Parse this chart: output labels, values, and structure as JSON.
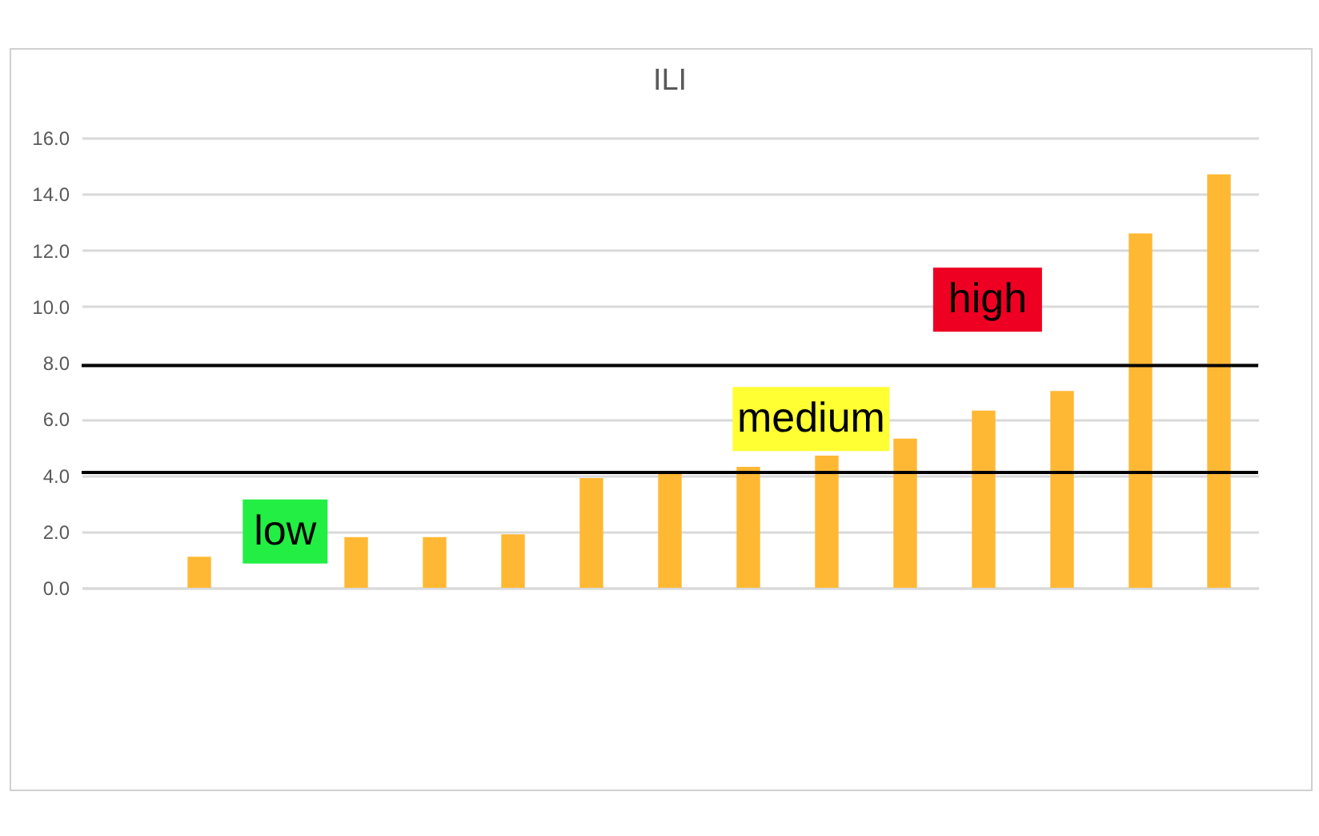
{
  "chart_data": {
    "type": "bar",
    "title": "ILI",
    "categories": [
      null,
      null,
      null,
      null,
      null,
      null,
      null,
      null,
      null,
      null,
      null,
      null,
      null,
      null,
      null
    ],
    "values": [
      null,
      1.1,
      null,
      1.8,
      1.8,
      1.9,
      3.9,
      4.1,
      4.3,
      4.7,
      5.3,
      6.3,
      7.0,
      12.6,
      14.7
    ],
    "color": "#ffb833",
    "ylim": [
      0,
      16
    ],
    "yticks": [
      {
        "value": 0,
        "label": "0.0"
      },
      {
        "value": 2,
        "label": "2.0"
      },
      {
        "value": 4,
        "label": "4.0"
      },
      {
        "value": 6,
        "label": "6.0"
      },
      {
        "value": 8,
        "label": "8.0"
      },
      {
        "value": 10,
        "label": "10.0"
      },
      {
        "value": 12,
        "label": "12.0"
      },
      {
        "value": 14,
        "label": "14.0"
      },
      {
        "value": 16,
        "label": "16.0"
      }
    ],
    "grid": "y",
    "tick_labels": "y",
    "ref_lines": [
      {
        "axis": "y",
        "value": 4.1,
        "color": "#000000"
      },
      {
        "axis": "y",
        "value": 7.9,
        "color": "#000000"
      }
    ],
    "annotations": [
      "low",
      "medium",
      "high"
    ]
  }
}
